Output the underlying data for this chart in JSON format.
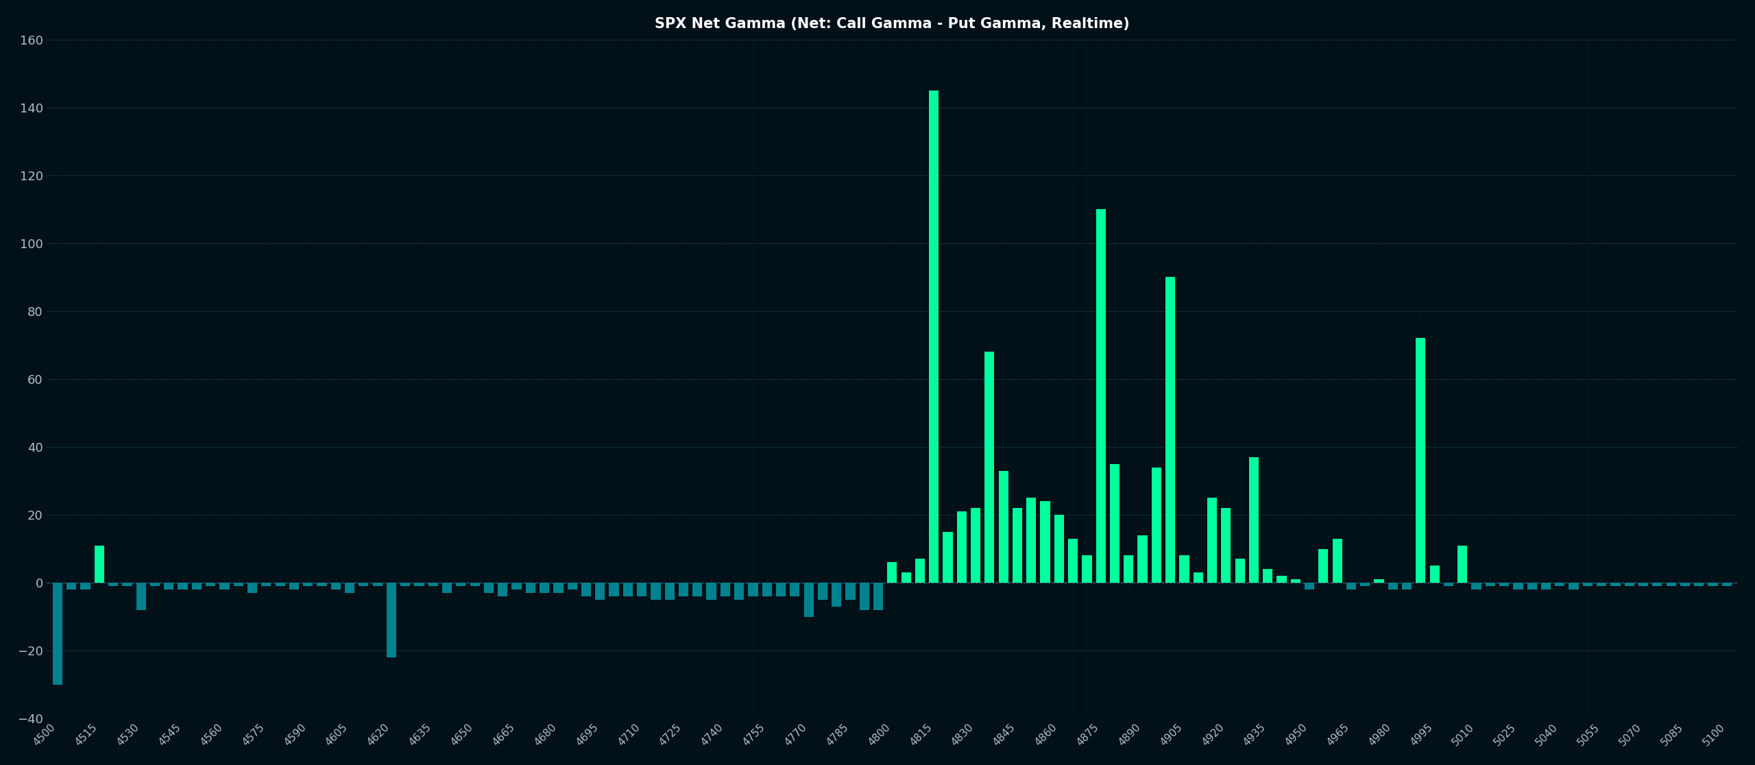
{
  "title": "SPX Net Gamma (Net: Call Gamma - Put Gamma, Realtime)",
  "background_color": "#021018",
  "grid_color": "#0d2e38",
  "text_color": "#b0bec5",
  "title_color": "#ffffff",
  "bar_color_positive": "#00ff9d",
  "bar_color_negative": "#00838f",
  "categories": [
    4500,
    4505,
    4510,
    4515,
    4520,
    4525,
    4530,
    4535,
    4540,
    4545,
    4550,
    4555,
    4560,
    4565,
    4570,
    4575,
    4580,
    4585,
    4590,
    4595,
    4600,
    4605,
    4610,
    4615,
    4620,
    4625,
    4630,
    4635,
    4640,
    4645,
    4650,
    4655,
    4660,
    4665,
    4670,
    4675,
    4680,
    4685,
    4690,
    4695,
    4700,
    4705,
    4710,
    4715,
    4720,
    4725,
    4730,
    4735,
    4740,
    4745,
    4750,
    4755,
    4760,
    4765,
    4770,
    4775,
    4780,
    4785,
    4790,
    4795,
    4800,
    4805,
    4810,
    4815,
    4820,
    4825,
    4830,
    4835,
    4840,
    4845,
    4850,
    4855,
    4860,
    4865,
    4870,
    4875,
    4880,
    4885,
    4890,
    4895,
    4900,
    4905,
    4910,
    4915,
    4920,
    4925,
    4930,
    4935,
    4940,
    4945,
    4950,
    4955,
    4960,
    4965,
    4970,
    4975,
    4980,
    4985,
    4990,
    4995,
    5000,
    5005,
    5010,
    5015,
    5020,
    5025,
    5030,
    5035,
    5040,
    5045,
    5050,
    5055,
    5060,
    5065,
    5070,
    5075,
    5080,
    5085,
    5090,
    5095,
    5100
  ],
  "values": [
    -30,
    -2,
    -2,
    11,
    -1,
    -1,
    -8,
    -1,
    -2,
    -2,
    -2,
    -1,
    -2,
    -1,
    -3,
    -1,
    -1,
    -2,
    -1,
    -1,
    -2,
    -3,
    -1,
    -1,
    -22,
    -1,
    -1,
    -1,
    -3,
    -1,
    -1,
    -3,
    -4,
    -2,
    -3,
    -3,
    -3,
    -2,
    -4,
    -5,
    -4,
    -4,
    -4,
    -5,
    -5,
    -4,
    -4,
    -5,
    -4,
    -5,
    -4,
    -4,
    -4,
    -4,
    -10,
    -5,
    -7,
    -5,
    -8,
    -8,
    6,
    3,
    7,
    145,
    15,
    21,
    22,
    68,
    33,
    22,
    25,
    24,
    20,
    13,
    8,
    110,
    35,
    8,
    14,
    34,
    90,
    8,
    3,
    25,
    22,
    7,
    37,
    4,
    2,
    1,
    -2,
    10,
    13,
    -2,
    -1,
    1,
    -2,
    -2,
    72,
    5,
    -1,
    11,
    -2,
    -1,
    -1,
    -2,
    -2,
    -2,
    -1,
    -2,
    -1,
    -1,
    -1,
    -1,
    -1,
    -1,
    -1,
    -1,
    -1,
    -1,
    -1
  ],
  "ylim": [
    -40,
    160
  ],
  "yticks": [
    -40,
    -20,
    0,
    20,
    40,
    60,
    80,
    100,
    120,
    140,
    160
  ],
  "xtick_step": 3,
  "figsize": [
    25.6,
    11.16
  ],
  "dpi": 100
}
